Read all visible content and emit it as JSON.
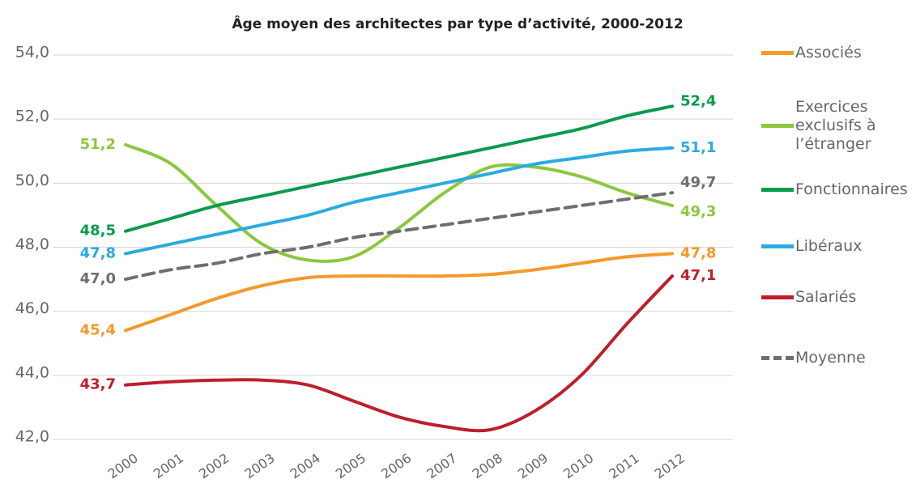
{
  "chart_data": {
    "type": "line",
    "title": "Âge moyen des architectes par type d’activité, 2000-2012",
    "categories": [
      "2000",
      "2001",
      "2002",
      "2003",
      "2004",
      "2005",
      "2006",
      "2007",
      "2008",
      "2009",
      "2010",
      "2011",
      "2012"
    ],
    "ylim": [
      42,
      54
    ],
    "yticks": [
      {
        "value": 42,
        "label": "42,0"
      },
      {
        "value": 44,
        "label": "44,0"
      },
      {
        "value": 46,
        "label": "46,0"
      },
      {
        "value": 48,
        "label": "48,0"
      },
      {
        "value": 50,
        "label": "50,0"
      },
      {
        "value": 52,
        "label": "52,0"
      },
      {
        "value": 54,
        "label": "54,0"
      }
    ],
    "grid": true,
    "legend": "right",
    "series": [
      {
        "name": "Associés",
        "color": "#f39a2b",
        "values": [
          45.4,
          45.9,
          46.4,
          46.8,
          47.05,
          47.1,
          47.1,
          47.1,
          47.15,
          47.3,
          47.5,
          47.7,
          47.8
        ],
        "value_labels": [
          "45,4",
          null,
          null,
          null,
          null,
          null,
          null,
          null,
          null,
          null,
          null,
          null,
          "47,8"
        ]
      },
      {
        "name": "Exercices exclusifs à l’étranger",
        "color": "#8dc63f",
        "values": [
          51.2,
          50.6,
          49.3,
          48.1,
          47.6,
          47.7,
          48.6,
          49.7,
          50.5,
          50.5,
          50.2,
          49.7,
          49.3
        ],
        "value_labels": [
          "51,2",
          null,
          null,
          null,
          null,
          null,
          null,
          null,
          null,
          null,
          null,
          null,
          "49,3"
        ]
      },
      {
        "name": "Fonctionnaires",
        "color": "#0a9a4c",
        "values": [
          48.5,
          48.9,
          49.3,
          49.6,
          49.9,
          50.2,
          50.5,
          50.8,
          51.1,
          51.4,
          51.7,
          52.1,
          52.4
        ],
        "value_labels": [
          "48,5",
          null,
          null,
          null,
          null,
          null,
          null,
          null,
          null,
          null,
          null,
          null,
          "52,4"
        ]
      },
      {
        "name": "Libéraux",
        "color": "#29abe2",
        "values": [
          47.8,
          48.1,
          48.4,
          48.7,
          49.0,
          49.4,
          49.7,
          50.0,
          50.3,
          50.6,
          50.8,
          51.0,
          51.1
        ],
        "value_labels": [
          "47,8",
          null,
          null,
          null,
          null,
          null,
          null,
          null,
          null,
          null,
          null,
          null,
          "51,1"
        ]
      },
      {
        "name": "Salariés",
        "color": "#be1e2d",
        "values": [
          43.7,
          43.8,
          43.85,
          43.85,
          43.7,
          43.2,
          42.7,
          42.4,
          42.3,
          42.9,
          44.0,
          45.6,
          47.1
        ],
        "value_labels": [
          "43,7",
          null,
          null,
          null,
          null,
          null,
          null,
          null,
          null,
          null,
          null,
          null,
          "47,1"
        ]
      },
      {
        "name": "Moyenne",
        "color": "#6d6e71",
        "dashed": true,
        "values": [
          47.0,
          47.3,
          47.5,
          47.8,
          48.0,
          48.3,
          48.5,
          48.7,
          48.9,
          49.1,
          49.3,
          49.5,
          49.7
        ],
        "value_labels": [
          "47,0",
          null,
          null,
          null,
          null,
          null,
          null,
          null,
          null,
          null,
          null,
          null,
          "49,7"
        ]
      }
    ]
  }
}
